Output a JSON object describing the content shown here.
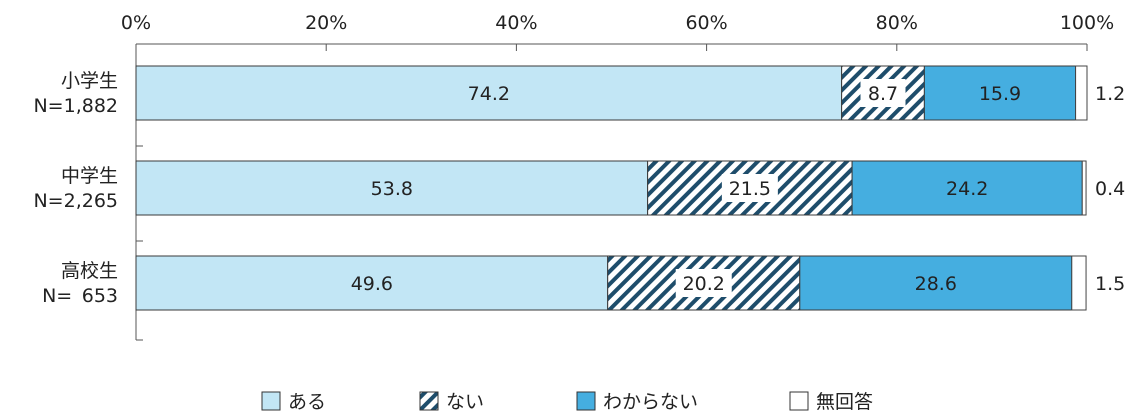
{
  "chart_data": {
    "type": "bar",
    "orientation": "horizontal",
    "stacked": true,
    "x_axis": {
      "ticks": [
        "0%",
        "20%",
        "40%",
        "60%",
        "80%",
        "100%"
      ],
      "range": [
        0,
        100
      ]
    },
    "categories": [
      {
        "name": "小学生",
        "n_label": "N=1,882"
      },
      {
        "name": "中学生",
        "n_label": "N=2,265"
      },
      {
        "name": "高校生",
        "n_label": "N= 653"
      }
    ],
    "series": [
      {
        "name": "ある",
        "color": "#c2e6f5",
        "pattern": "solid",
        "values": [
          74.2,
          53.8,
          49.6
        ],
        "labels": [
          "74.2",
          "53.8",
          "49.6"
        ]
      },
      {
        "name": "ない",
        "color": "#1e4d6b",
        "pattern": "diagonal-hatch",
        "values": [
          8.7,
          21.5,
          20.2
        ],
        "labels": [
          "8.7",
          "21.5",
          "20.2"
        ]
      },
      {
        "name": "わからない",
        "color": "#45aee0",
        "pattern": "solid",
        "values": [
          15.9,
          24.2,
          28.6
        ],
        "labels": [
          "15.9",
          "24.2",
          "28.6"
        ]
      },
      {
        "name": "無回答",
        "color": "#ffffff",
        "pattern": "outline",
        "values": [
          1.2,
          0.4,
          1.5
        ],
        "labels": [
          "1.2",
          "0.4",
          "1.5"
        ]
      }
    ],
    "legend_position": "bottom",
    "grid": false
  }
}
